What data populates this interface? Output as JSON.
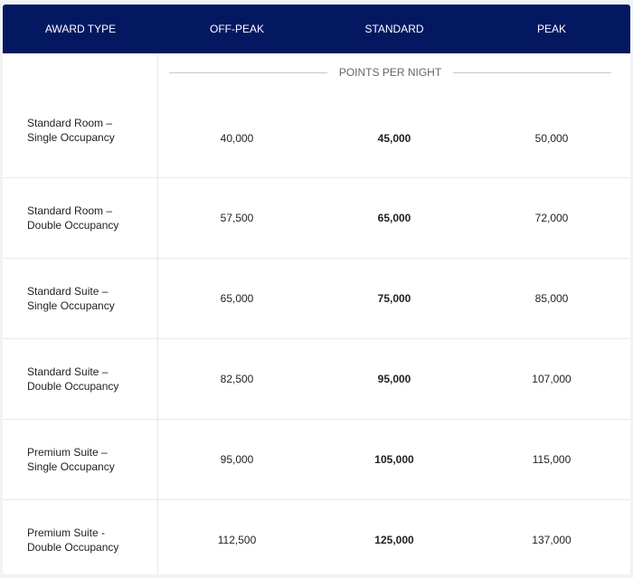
{
  "header": [
    "AWARD TYPE",
    "OFF-PEAK",
    "STANDARD",
    "PEAK"
  ],
  "subheader": "POINTS PER NIGHT",
  "colors": {
    "header_bg": "#031861",
    "header_text": "#ffffff"
  },
  "rows": [
    {
      "type": "Standard Room –\nSingle Occupancy",
      "off_peak": "40,000",
      "standard": "45,000",
      "peak": "50,000"
    },
    {
      "type": "Standard Room –\nDouble Occupancy",
      "off_peak": "57,500",
      "standard": "65,000",
      "peak": "72,000"
    },
    {
      "type": "Standard Suite –\nSingle Occupancy",
      "off_peak": "65,000",
      "standard": "75,000",
      "peak": "85,000"
    },
    {
      "type": "Standard Suite  –\nDouble Occupancy",
      "off_peak": "82,500",
      "standard": "95,000",
      "peak": "107,000"
    },
    {
      "type": "Premium Suite –\nSingle Occupancy",
      "off_peak": "95,000",
      "standard": "105,000",
      "peak": "115,000"
    },
    {
      "type": "Premium Suite -\nDouble Occupancy",
      "off_peak": "112,500",
      "standard": "125,000",
      "peak": "137,000"
    }
  ]
}
